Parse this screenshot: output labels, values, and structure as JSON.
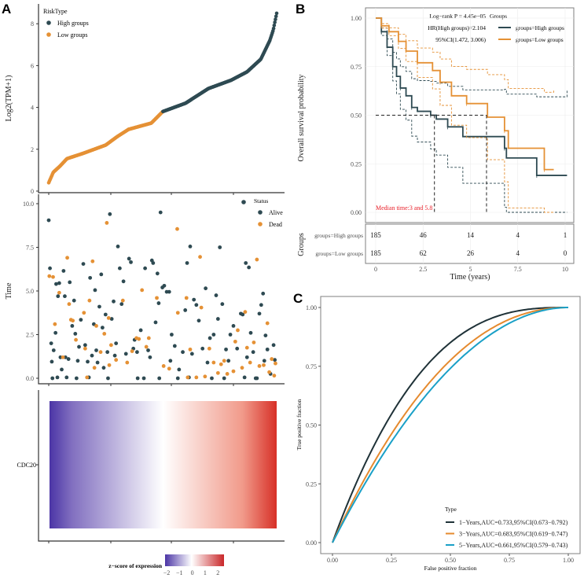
{
  "colors": {
    "high": "#2e4a52",
    "low": "#e59135",
    "alive": "#2e4a52",
    "dead": "#e59135",
    "roc1": "#1f3238",
    "roc3": "#e58a2e",
    "roc5": "#1aa0c7",
    "heat_low": "#4b35a6",
    "heat_mid": "#ffffff",
    "heat_high": "#d73027",
    "median": "#e8202a"
  },
  "panels": {
    "a": "A",
    "b": "B",
    "c": "C"
  },
  "chart_data": [
    {
      "type": "scatter",
      "panel": "A-top",
      "ylabel": "Log2(TPM+1)",
      "yticks": [
        "0",
        "2",
        "4",
        "6",
        "8"
      ],
      "ylim": [
        0,
        8.9
      ],
      "legend_title": "RiskType",
      "legend": [
        "High groups",
        "Low groups"
      ],
      "n": 370,
      "quantile_curve": [
        [
          0,
          0.4
        ],
        [
          0.02,
          0.9
        ],
        [
          0.05,
          1.2
        ],
        [
          0.08,
          1.55
        ],
        [
          0.15,
          1.8
        ],
        [
          0.25,
          2.2
        ],
        [
          0.3,
          2.6
        ],
        [
          0.35,
          2.95
        ],
        [
          0.45,
          3.25
        ],
        [
          0.5,
          3.8
        ],
        [
          0.6,
          4.2
        ],
        [
          0.7,
          4.9
        ],
        [
          0.8,
          5.3
        ],
        [
          0.87,
          5.7
        ],
        [
          0.93,
          6.3
        ],
        [
          0.97,
          7.2
        ],
        [
          0.985,
          7.7
        ],
        [
          1,
          8.5
        ]
      ]
    },
    {
      "type": "scatter",
      "panel": "A-middle",
      "ylabel": "Time",
      "yticks": [
        "0.0",
        "2.5",
        "5.0",
        "7.5",
        "10.0"
      ],
      "ylim": [
        0,
        10.3
      ],
      "legend_title": "Status",
      "legend": [
        "Alive",
        "Dead"
      ],
      "alive": [
        [
          1,
          9.05
        ],
        [
          3,
          6.3
        ],
        [
          5,
          2.0
        ],
        [
          6,
          0.95
        ],
        [
          9,
          1.6
        ],
        [
          12,
          2.6
        ],
        [
          13,
          5.4
        ],
        [
          16,
          4.7
        ],
        [
          18,
          5.45
        ],
        [
          20,
          1.2
        ],
        [
          22,
          0.5
        ],
        [
          25,
          6.15
        ],
        [
          27,
          4.7
        ],
        [
          33,
          1.1
        ],
        [
          35,
          5.5
        ],
        [
          39,
          3.0
        ],
        [
          42,
          4.45
        ],
        [
          44,
          2.55
        ],
        [
          48,
          1.0
        ],
        [
          53,
          3.35
        ],
        [
          57,
          6.55
        ],
        [
          60,
          1.9
        ],
        [
          64,
          0.95
        ],
        [
          68,
          5.75
        ],
        [
          71,
          1.3
        ],
        [
          74,
          3.1
        ],
        [
          76,
          5.05
        ],
        [
          80,
          0.9
        ],
        [
          83,
          4.1
        ],
        [
          86,
          5.95
        ],
        [
          88,
          2.9
        ],
        [
          90,
          0.6
        ],
        [
          93,
          3.65
        ],
        [
          96,
          1.5
        ],
        [
          100,
          9.4
        ],
        [
          103,
          3.4
        ],
        [
          106,
          4.4
        ],
        [
          110,
          2.0
        ],
        [
          113,
          7.55
        ],
        [
          116,
          6.3
        ],
        [
          119,
          4.25
        ],
        [
          122,
          5.55
        ],
        [
          126,
          1.4
        ],
        [
          131,
          6.85
        ],
        [
          134,
          6.65
        ],
        [
          140,
          2.2
        ],
        [
          144,
          1.5
        ],
        [
          150,
          2.75
        ],
        [
          157,
          6.3
        ],
        [
          162,
          1.6
        ],
        [
          168,
          6.75
        ],
        [
          170,
          6.6
        ],
        [
          174,
          3.2
        ],
        [
          177,
          6.0
        ],
        [
          179,
          4.3
        ],
        [
          182,
          9.5
        ],
        [
          185,
          5.2
        ],
        [
          188,
          5.3
        ],
        [
          192,
          4.95
        ],
        [
          196,
          4.95
        ],
        [
          200,
          2.5
        ],
        [
          205,
          1.85
        ],
        [
          212,
          0.5
        ],
        [
          218,
          1.5
        ],
        [
          222,
          3.9
        ],
        [
          225,
          6.6
        ],
        [
          230,
          7.55
        ],
        [
          236,
          4.5
        ],
        [
          240,
          4.2
        ],
        [
          244,
          3.3
        ],
        [
          250,
          1.7
        ],
        [
          255,
          5.15
        ],
        [
          262,
          2.3
        ],
        [
          268,
          2.5
        ],
        [
          272,
          4.75
        ],
        [
          275,
          3.4
        ],
        [
          278,
          7.5
        ],
        [
          282,
          4.25
        ],
        [
          288,
          1.65
        ],
        [
          295,
          2.5
        ],
        [
          300,
          3.0
        ],
        [
          306,
          1.7
        ],
        [
          312,
          3.7
        ],
        [
          315,
          3.65
        ],
        [
          320,
          6.6
        ],
        [
          325,
          6.35
        ],
        [
          328,
          2.6
        ],
        [
          332,
          1.5
        ],
        [
          338,
          0.0
        ],
        [
          342,
          3.7
        ],
        [
          345,
          4.2
        ],
        [
          348,
          4.85
        ],
        [
          352,
          2.45
        ],
        [
          355,
          1.65
        ],
        [
          360,
          0.25
        ],
        [
          365,
          1.9
        ],
        [
          367,
          1.05
        ],
        [
          7,
          0.0
        ],
        [
          15,
          0.05
        ],
        [
          30,
          0.05
        ],
        [
          46,
          0.0
        ],
        [
          66,
          0.05
        ],
        [
          97,
          0.0
        ],
        [
          145,
          0.0
        ],
        [
          155,
          0.0
        ],
        [
          180,
          0.0
        ],
        [
          210,
          0.0
        ],
        [
          228,
          0.05
        ],
        [
          265,
          0.0
        ],
        [
          285,
          0.0
        ],
        [
          318,
          0.05
        ],
        [
          336,
          0.0
        ],
        [
          28,
          1.2
        ],
        [
          50,
          1.8
        ],
        [
          78,
          1.6
        ],
        [
          108,
          1.3
        ],
        [
          138,
          1.7
        ],
        [
          165,
          1.2
        ],
        [
          198,
          1.0
        ],
        [
          233,
          1.4
        ],
        [
          258,
          0.9
        ],
        [
          292,
          1.0
        ],
        [
          322,
          1.2
        ],
        [
          350,
          1.0
        ]
      ],
      "dead": [
        [
          2,
          5.85
        ],
        [
          8,
          5.8
        ],
        [
          11,
          3.1
        ],
        [
          18,
          4.9
        ],
        [
          24,
          1.2
        ],
        [
          31,
          6.9
        ],
        [
          34,
          4.25
        ],
        [
          37,
          3.35
        ],
        [
          40,
          3.3
        ],
        [
          45,
          2.2
        ],
        [
          58,
          3.75
        ],
        [
          63,
          0.05
        ],
        [
          67,
          4.45
        ],
        [
          72,
          6.7
        ],
        [
          75,
          0.6
        ],
        [
          78,
          3.0
        ],
        [
          85,
          1.5
        ],
        [
          91,
          2.55
        ],
        [
          95,
          8.9
        ],
        [
          98,
          3.45
        ],
        [
          99,
          0.75
        ],
        [
          102,
          1.9
        ],
        [
          121,
          4.45
        ],
        [
          128,
          0.9
        ],
        [
          136,
          1.55
        ],
        [
          143,
          2.3
        ],
        [
          147,
          2.25
        ],
        [
          152,
          5.05
        ],
        [
          159,
          1.8
        ],
        [
          163,
          2.3
        ],
        [
          176,
          4.6
        ],
        [
          187,
          0.7
        ],
        [
          196,
          0.55
        ],
        [
          209,
          8.55
        ],
        [
          210,
          3.75
        ],
        [
          224,
          4.6
        ],
        [
          226,
          0.05
        ],
        [
          230,
          1.65
        ],
        [
          246,
          6.95
        ],
        [
          248,
          4.05
        ],
        [
          254,
          0.1
        ],
        [
          261,
          1.7
        ],
        [
          268,
          0.9
        ],
        [
          280,
          0.8
        ],
        [
          290,
          0.25
        ],
        [
          300,
          0.4
        ],
        [
          303,
          2.1
        ],
        [
          307,
          2.75
        ],
        [
          314,
          0.6
        ],
        [
          319,
          3.8
        ],
        [
          322,
          1.75
        ],
        [
          327,
          0.9
        ],
        [
          333,
          2.05
        ],
        [
          338,
          6.8
        ],
        [
          342,
          0.7
        ],
        [
          349,
          0.75
        ],
        [
          355,
          3.15
        ],
        [
          358,
          0.35
        ],
        [
          362,
          1.1
        ],
        [
          366,
          0.15
        ],
        [
          368,
          0.85
        ],
        [
          60,
          1.7
        ],
        [
          110,
          1.05
        ],
        [
          240,
          0.05
        ],
        [
          275,
          0.3
        ],
        [
          285,
          1.0
        ]
      ]
    },
    {
      "type": "heatmap",
      "panel": "A-bottom",
      "row_label": "CDC20",
      "legend_title": "z−score of expression",
      "legend_ticks": [
        "−2",
        "−1",
        "0",
        "1",
        "2"
      ],
      "range": [
        -2,
        2.6
      ]
    },
    {
      "type": "line",
      "panel": "B",
      "ylabel": "Overall survival probability",
      "xlabel": "Time (years)",
      "yticks": [
        "0.00",
        "0.25",
        "0.50",
        "0.75",
        "1.00"
      ],
      "xticks": [
        "0",
        "2.5",
        "5",
        "7.5",
        "10"
      ],
      "xlim": [
        0,
        10.3
      ],
      "ylim": [
        0,
        1
      ],
      "legend_title": "Groups",
      "stats": [
        "Log−rank P = 4.45e−05",
        "HR(High groups)=2.104",
        "95%CI(1.472, 3.006)"
      ],
      "median_text": "Median time:3 and 5.8",
      "medians": [
        3.1,
        5.85
      ],
      "series": [
        {
          "name": "groups=High groups",
          "steps": [
            [
              0,
              1
            ],
            [
              0.3,
              0.93
            ],
            [
              0.6,
              0.85
            ],
            [
              0.9,
              0.75
            ],
            [
              1.1,
              0.7
            ],
            [
              1.3,
              0.64
            ],
            [
              1.6,
              0.6
            ],
            [
              1.9,
              0.54
            ],
            [
              2.2,
              0.52
            ],
            [
              2.9,
              0.5
            ],
            [
              3.2,
              0.48
            ],
            [
              3.8,
              0.44
            ],
            [
              4.6,
              0.39
            ],
            [
              6.8,
              0.33
            ],
            [
              6.9,
              0.28
            ],
            [
              8.5,
              0.19
            ],
            [
              10.1,
              0.19
            ]
          ]
        },
        {
          "name": "groups=Low groups",
          "steps": [
            [
              0,
              1
            ],
            [
              0.3,
              0.96
            ],
            [
              0.7,
              0.93
            ],
            [
              1.2,
              0.88
            ],
            [
              1.6,
              0.83
            ],
            [
              2.2,
              0.77
            ],
            [
              3.0,
              0.73
            ],
            [
              3.4,
              0.67
            ],
            [
              4.0,
              0.6
            ],
            [
              4.8,
              0.56
            ],
            [
              5.9,
              0.49
            ],
            [
              6.8,
              0.42
            ],
            [
              7.0,
              0.33
            ],
            [
              8.9,
              0.22
            ],
            [
              9.4,
              0.22
            ]
          ]
        }
      ],
      "risk_table": {
        "title": "Groups",
        "rows": [
          {
            "label": "groups=High groups",
            "values": [
              "185",
              "46",
              "14",
              "4",
              "1"
            ]
          },
          {
            "label": "groups=Low groups",
            "values": [
              "185",
              "62",
              "26",
              "4",
              "0"
            ]
          }
        ]
      }
    },
    {
      "type": "line",
      "panel": "C",
      "xlabel": "False positive fraction",
      "ylabel": "True positive fraction",
      "xticks": [
        "0.00",
        "0.25",
        "0.50",
        "0.75",
        "1.00"
      ],
      "yticks": [
        "0.00",
        "0.25",
        "0.50",
        "0.75",
        "1.00"
      ],
      "xlim": [
        0,
        1
      ],
      "ylim": [
        0,
        1
      ],
      "legend_title": "Type",
      "legend_position": "bottom-right",
      "series": [
        {
          "name": "1−Years,AUC=0.733,95%CI(0.673−0.792)",
          "auc": 0.733
        },
        {
          "name": "3−Years,AUC=0.683,95%CI(0.619−0.747)",
          "auc": 0.683
        },
        {
          "name": "5−Years,AUC=0.661,95%CI(0.579−0.743)",
          "auc": 0.661
        }
      ]
    }
  ]
}
